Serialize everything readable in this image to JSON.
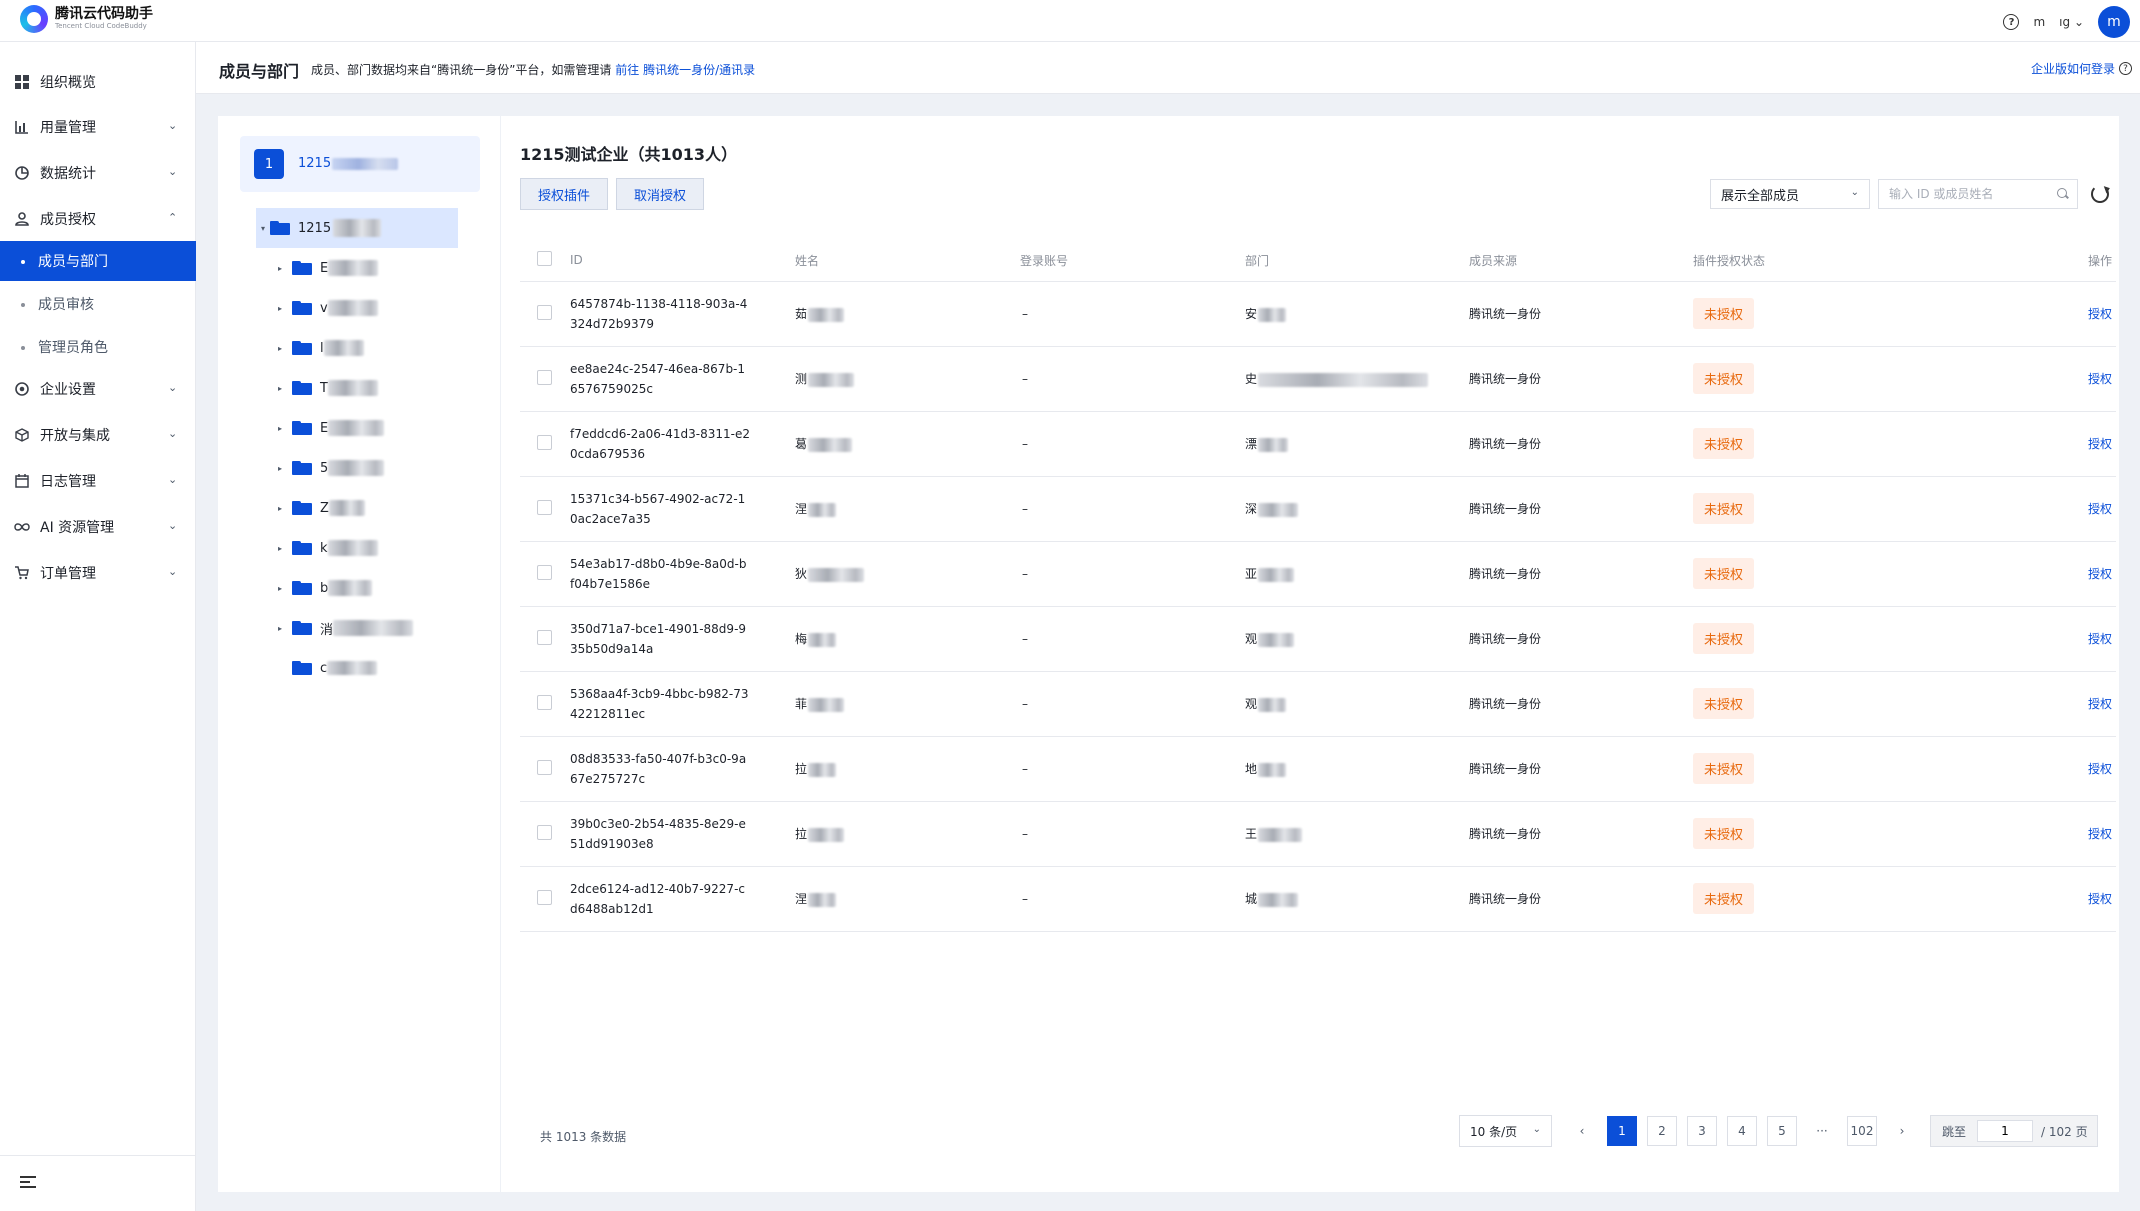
{
  "app": {
    "name": "腾讯云代码助手",
    "subtitle": "Tencent Cloud CodeBuddy"
  },
  "topbar": {
    "help": "?",
    "user_short": "m",
    "lang": "ıg",
    "avatar": "m"
  },
  "sidebar": {
    "items": [
      {
        "label": "组织概览",
        "icon": "grid-icon"
      },
      {
        "label": "用量管理",
        "icon": "bar-chart-icon"
      },
      {
        "label": "数据统计",
        "icon": "pie-chart-icon"
      },
      {
        "label": "成员授权",
        "icon": "user-icon"
      },
      {
        "label": "企业设置",
        "icon": "settings-icon"
      },
      {
        "label": "开放与集成",
        "icon": "cube-icon"
      },
      {
        "label": "日志管理",
        "icon": "calendar-icon"
      },
      {
        "label": "AI 资源管理",
        "icon": "infinity-icon"
      },
      {
        "label": "订单管理",
        "icon": "cart-icon"
      }
    ],
    "sub_items": [
      {
        "label": "成员与部门",
        "active": true
      },
      {
        "label": "成员审核",
        "active": false
      },
      {
        "label": "管理员角色",
        "active": false
      }
    ]
  },
  "header": {
    "title": "成员与部门",
    "desc_prefix": "成员、部门数据均来自“腾讯统一身份”平台，如需管理请",
    "desc_link": "前往 腾讯统一身份/通讯录",
    "login_help": "企业版如何登录"
  },
  "tree": {
    "org_badge": "1",
    "org_name": "1215",
    "root": "1215",
    "nodes": [
      "E",
      "v",
      "l",
      "T",
      "E",
      "5",
      "Z",
      "k",
      "b",
      "消",
      "c"
    ]
  },
  "main": {
    "title": "1215测试企业（共1013人）",
    "btn_authorize": "授权插件",
    "btn_revoke": "取消授权",
    "filter": "展示全部成员",
    "search_placeholder": "输入 ID 或成员姓名",
    "columns": [
      "ID",
      "姓名",
      "登录账号",
      "部门",
      "成员来源",
      "插件授权状态",
      "操作"
    ],
    "rows": [
      {
        "id": "6457874b-1138-4118-903a-4324d72b9379",
        "name": "茹",
        "account": "–",
        "dept": "安",
        "source": "腾讯统一身份",
        "status": "未授权",
        "action": "授权"
      },
      {
        "id": "ee8ae24c-2547-46ea-867b-16576759025c",
        "name": "测",
        "account": "–",
        "dept": "史",
        "source": "腾讯统一身份",
        "status": "未授权",
        "action": "授权"
      },
      {
        "id": "f7eddcd6-2a06-41d3-8311-e20cda679536",
        "name": "葛",
        "account": "–",
        "dept": "漂",
        "source": "腾讯统一身份",
        "status": "未授权",
        "action": "授权"
      },
      {
        "id": "15371c34-b567-4902-ac72-10ac2ace7a35",
        "name": "涅",
        "account": "–",
        "dept": "深",
        "source": "腾讯统一身份",
        "status": "未授权",
        "action": "授权"
      },
      {
        "id": "54e3ab17-d8b0-4b9e-8a0d-bf04b7e1586e",
        "name": "狄",
        "account": "–",
        "dept": "亚",
        "source": "腾讯统一身份",
        "status": "未授权",
        "action": "授权"
      },
      {
        "id": "350d71a7-bce1-4901-88d9-935b50d9a14a",
        "name": "梅",
        "account": "–",
        "dept": "观",
        "source": "腾讯统一身份",
        "status": "未授权",
        "action": "授权"
      },
      {
        "id": "5368aa4f-3cb9-4bbc-b982-7342212811ec",
        "name": "菲",
        "account": "–",
        "dept": "观",
        "source": "腾讯统一身份",
        "status": "未授权",
        "action": "授权"
      },
      {
        "id": "08d83533-fa50-407f-b3c0-9a67e275727c",
        "name": "拉",
        "account": "–",
        "dept": "地",
        "source": "腾讯统一身份",
        "status": "未授权",
        "action": "授权"
      },
      {
        "id": "39b0c3e0-2b54-4835-8e29-e51dd91903e8",
        "name": "拉",
        "account": "–",
        "dept": "王",
        "source": "腾讯统一身份",
        "status": "未授权",
        "action": "授权"
      },
      {
        "id": "2dce6124-ad12-40b7-9227-cd6488ab12d1",
        "name": "涅",
        "account": "–",
        "dept": "城",
        "source": "腾讯统一身份",
        "status": "未授权",
        "action": "授权"
      }
    ]
  },
  "pagination": {
    "total": "共 1013 条数据",
    "page_size": "10 条/页",
    "prev": "‹",
    "pages": [
      "1",
      "2",
      "3",
      "4",
      "5"
    ],
    "ellipsis": "···",
    "last": "102",
    "next": "›",
    "jump_label": "跳至",
    "current": "1",
    "total_pages": "/ 102 页"
  }
}
